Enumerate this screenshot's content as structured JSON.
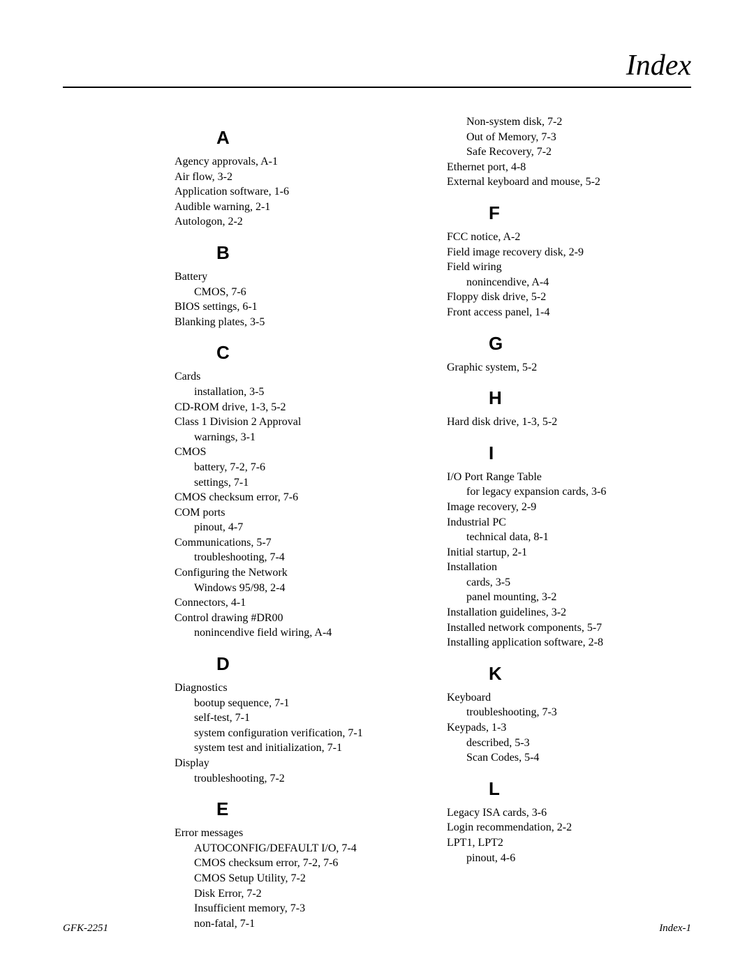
{
  "title": "Index",
  "footer": {
    "left": "GFK-2251",
    "right": "Index-1"
  },
  "columns": [
    {
      "side": "left",
      "sections": [
        {
          "letter": "A",
          "entries": [
            {
              "text": "Agency approvals, A-1"
            },
            {
              "text": "Air flow, 3-2"
            },
            {
              "text": "Application software, 1-6"
            },
            {
              "text": "Audible warning, 2-1"
            },
            {
              "text": "Autologon, 2-2"
            }
          ]
        },
        {
          "letter": "B",
          "entries": [
            {
              "text": "Battery"
            },
            {
              "text": "CMOS, 7-6",
              "sub": true
            },
            {
              "text": "BIOS settings, 6-1"
            },
            {
              "text": "Blanking plates, 3-5"
            }
          ]
        },
        {
          "letter": "C",
          "entries": [
            {
              "text": "Cards"
            },
            {
              "text": "installation, 3-5",
              "sub": true
            },
            {
              "text": "CD-ROM drive, 1-3, 5-2"
            },
            {
              "text": "Class 1 Division 2 Approval"
            },
            {
              "text": "warnings, 3-1",
              "sub": true
            },
            {
              "text": "CMOS"
            },
            {
              "text": "battery, 7-2, 7-6",
              "sub": true
            },
            {
              "text": "settings, 7-1",
              "sub": true
            },
            {
              "text": "CMOS checksum error, 7-6"
            },
            {
              "text": "COM ports"
            },
            {
              "text": "pinout, 4-7",
              "sub": true
            },
            {
              "text": "Communications, 5-7"
            },
            {
              "text": "troubleshooting, 7-4",
              "sub": true
            },
            {
              "text": "Configuring the Network"
            },
            {
              "text": "Windows 95/98, 2-4",
              "sub": true
            },
            {
              "text": "Connectors, 4-1"
            },
            {
              "text": "Control drawing #DR00"
            },
            {
              "text": "nonincendive field wiring, A-4",
              "sub": true
            }
          ]
        },
        {
          "letter": "D",
          "entries": [
            {
              "text": "Diagnostics"
            },
            {
              "text": "bootup sequence, 7-1",
              "sub": true
            },
            {
              "text": "self-test, 7-1",
              "sub": true
            },
            {
              "text": "system configuration verification, 7-1",
              "sub": true
            },
            {
              "text": "system test and initialization, 7-1",
              "sub": true
            },
            {
              "text": "Display"
            },
            {
              "text": "troubleshooting, 7-2",
              "sub": true
            }
          ]
        },
        {
          "letter": "E",
          "entries": [
            {
              "text": "Error messages"
            },
            {
              "text": "AUTOCONFIG/DEFAULT I/O, 7-4",
              "sub": true
            },
            {
              "text": "CMOS checksum error, 7-2, 7-6",
              "sub": true
            },
            {
              "text": "CMOS Setup Utility, 7-2",
              "sub": true
            },
            {
              "text": "Disk Error, 7-2",
              "sub": true
            },
            {
              "text": "Insufficient memory, 7-3",
              "sub": true
            },
            {
              "text": "non-fatal, 7-1",
              "sub": true
            }
          ]
        }
      ]
    },
    {
      "side": "right",
      "sections": [
        {
          "letter": null,
          "entries": [
            {
              "text": "Non-system disk, 7-2",
              "sub": true
            },
            {
              "text": "Out of Memory, 7-3",
              "sub": true
            },
            {
              "text": "Safe Recovery, 7-2",
              "sub": true
            },
            {
              "text": "Ethernet port, 4-8"
            },
            {
              "text": "External keyboard and mouse, 5-2"
            }
          ]
        },
        {
          "letter": "F",
          "entries": [
            {
              "text": "FCC notice, A-2"
            },
            {
              "text": "Field image recovery disk, 2-9"
            },
            {
              "text": "Field wiring"
            },
            {
              "text": "nonincendive, A-4",
              "sub": true
            },
            {
              "text": "Floppy disk drive, 5-2"
            },
            {
              "text": "Front access panel, 1-4"
            }
          ]
        },
        {
          "letter": "G",
          "entries": [
            {
              "text": "Graphic system, 5-2"
            }
          ]
        },
        {
          "letter": "H",
          "entries": [
            {
              "text": "Hard disk drive, 1-3, 5-2"
            }
          ]
        },
        {
          "letter": "I",
          "entries": [
            {
              "text": "I/O Port Range Table"
            },
            {
              "text": "for legacy expansion cards, 3-6",
              "sub": true
            },
            {
              "text": "Image recovery, 2-9"
            },
            {
              "text": "Industrial PC"
            },
            {
              "text": "technical data, 8-1",
              "sub": true
            },
            {
              "text": "Initial startup, 2-1"
            },
            {
              "text": "Installation"
            },
            {
              "text": "cards, 3-5",
              "sub": true
            },
            {
              "text": "panel mounting, 3-2",
              "sub": true
            },
            {
              "text": "Installation guidelines, 3-2"
            },
            {
              "text": "Installed network components, 5-7"
            },
            {
              "text": "Installing application software, 2-8"
            }
          ]
        },
        {
          "letter": "K",
          "entries": [
            {
              "text": "Keyboard"
            },
            {
              "text": "troubleshooting, 7-3",
              "sub": true
            },
            {
              "text": "Keypads, 1-3"
            },
            {
              "text": "described, 5-3",
              "sub": true
            },
            {
              "text": "Scan Codes, 5-4",
              "sub": true
            }
          ]
        },
        {
          "letter": "L",
          "entries": [
            {
              "text": "Legacy ISA cards, 3-6"
            },
            {
              "text": "Login recommendation, 2-2"
            },
            {
              "text": "LPT1, LPT2"
            },
            {
              "text": "pinout, 4-6",
              "sub": true
            }
          ]
        }
      ]
    }
  ]
}
